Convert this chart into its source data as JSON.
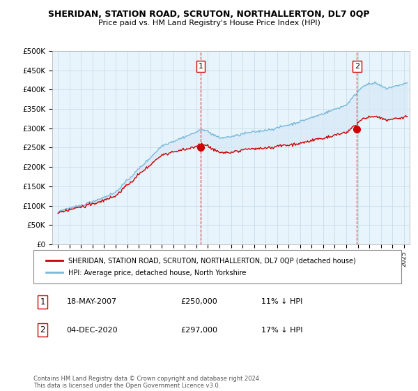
{
  "title": "SHERIDAN, STATION ROAD, SCRUTON, NORTHALLERTON, DL7 0QP",
  "subtitle": "Price paid vs. HM Land Registry's House Price Index (HPI)",
  "ylabel_ticks": [
    "£0",
    "£50K",
    "£100K",
    "£150K",
    "£200K",
    "£250K",
    "£300K",
    "£350K",
    "£400K",
    "£450K",
    "£500K"
  ],
  "ylim": [
    0,
    500000
  ],
  "xlim_start": 1994.5,
  "xlim_end": 2025.5,
  "sale1_x": 2007.38,
  "sale1_y": 250000,
  "sale2_x": 2020.92,
  "sale2_y": 297000,
  "legend_line1": "SHERIDAN, STATION ROAD, SCRUTON, NORTHALLERTON, DL7 0QP (detached house)",
  "legend_line2": "HPI: Average price, detached house, North Yorkshire",
  "footer": "Contains HM Land Registry data © Crown copyright and database right 2024.\nThis data is licensed under the Open Government Licence v3.0.",
  "hpi_color": "#7ab8d9",
  "price_color": "#cc0000",
  "fill_color": "#d6eaf8",
  "bg_color": "#e8f4fb",
  "grid_color": "#c0d8e8"
}
